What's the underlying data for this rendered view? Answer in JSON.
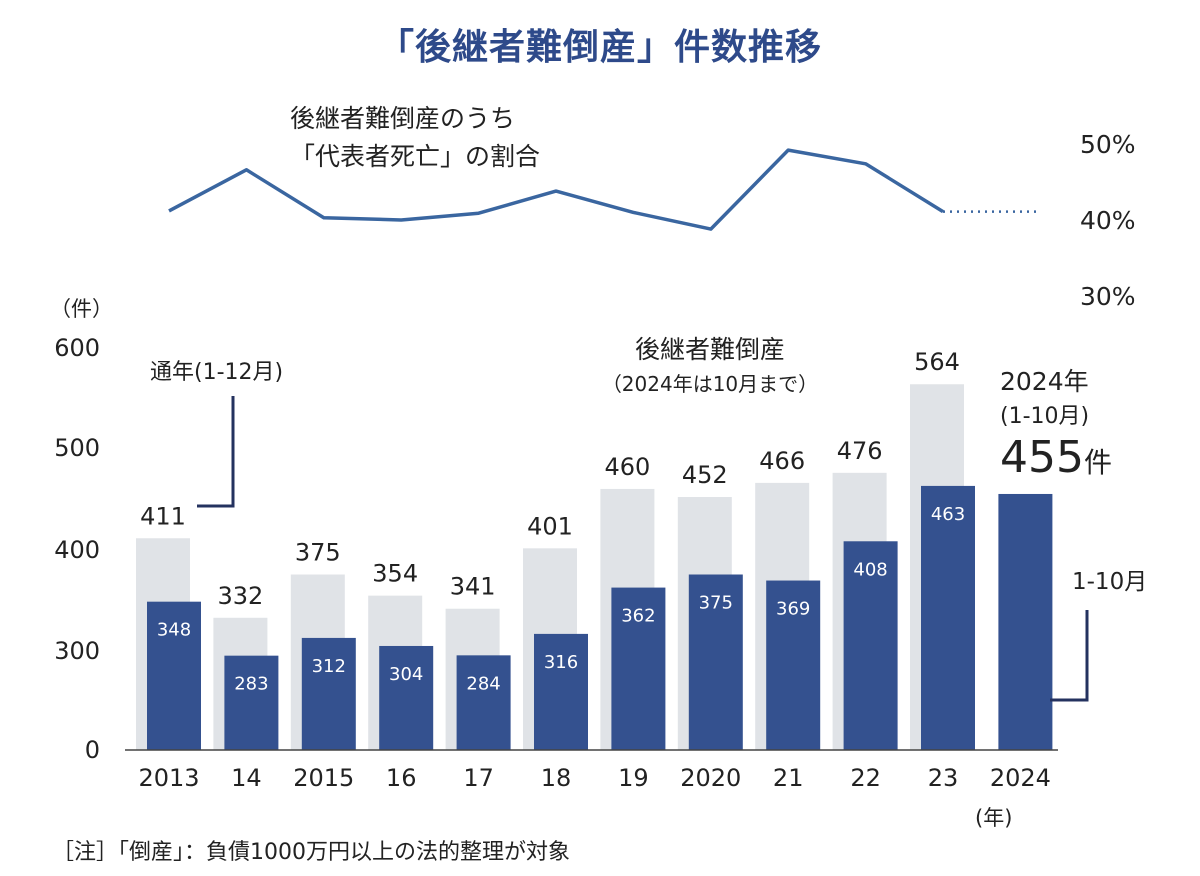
{
  "title": "「後継者難倒産」件数推移",
  "line_label_1": "後継者難倒産のうち",
  "line_label_2": "「代表者死亡」の割合",
  "pct_ticks": [
    "50%",
    "40%",
    "30%"
  ],
  "unit_label": "（件）",
  "annual_note": "通年(1-12月)",
  "series_note_1": "後継者難倒産",
  "series_note_2": "（2024年は10月まで）",
  "ann_2024_year": "2024年",
  "ann_2024_range": "(1-10月)",
  "ann_2024_value": "455",
  "ann_2024_unit": "件",
  "jan_oct_label": "1-10月",
  "x_unit": "(年)",
  "footnote": "［注］「倒産」：負債1000万円以上の法的整理が対象",
  "colors": {
    "annual_bar": "#e0e3e7",
    "jan_oct_bar": "#34518f",
    "line": "#3a66a0",
    "title": "#2e4a8a"
  },
  "chart_data": {
    "type": "bar",
    "categories": [
      "2013",
      "14",
      "2015",
      "16",
      "17",
      "18",
      "19",
      "2020",
      "21",
      "22",
      "23",
      "2024"
    ],
    "y_ticks": [
      "0",
      "300",
      "400",
      "500",
      "600"
    ],
    "series": [
      {
        "name": "通年(1-12月)",
        "values": [
          411,
          332,
          375,
          354,
          341,
          401,
          460,
          452,
          466,
          476,
          564,
          null
        ]
      },
      {
        "name": "1-10月",
        "values": [
          348,
          283,
          312,
          304,
          284,
          316,
          362,
          375,
          369,
          408,
          463,
          455
        ]
      }
    ],
    "line_series": {
      "name": "「代表者死亡」の割合",
      "unit": "%",
      "values": [
        41.2,
        46.6,
        40.3,
        40.0,
        40.9,
        43.8,
        41.0,
        38.8,
        49.2,
        47.4,
        41.1,
        41.1
      ],
      "dotted_from_index": 10,
      "ylim": [
        30,
        50
      ]
    },
    "ylim": [
      0,
      600
    ],
    "axis_break": "0-300"
  }
}
